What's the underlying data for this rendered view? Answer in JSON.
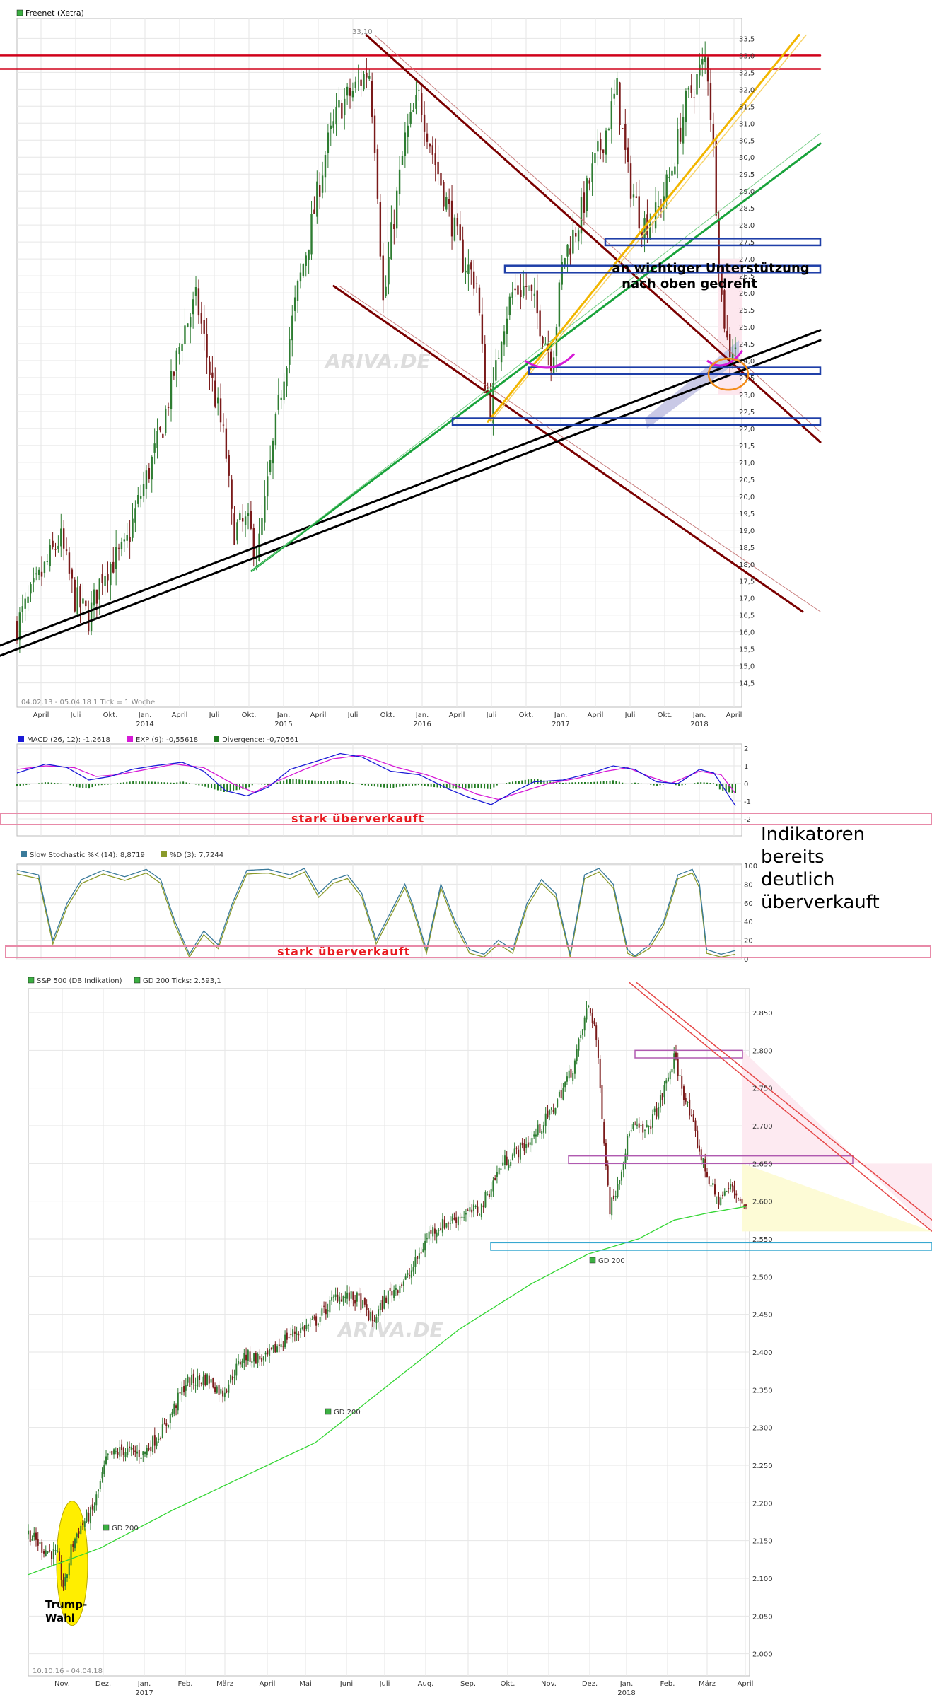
{
  "colors": {
    "up_candle": "#2e7d32",
    "down_candle": "#7a1a1a",
    "resistance": "#d0021b",
    "support_box": "#1f3fa8",
    "trend_dark": "#7a0000",
    "trend_black": "#000000",
    "trend_green": "#19a33b",
    "trend_orange": "#f2b600",
    "macd": "#1a1ad6",
    "signal": "#d61ad6",
    "divergence": "#1f7a1f",
    "stoch_k": "#3a7a9a",
    "stoch_d": "#8a9a2a",
    "gd200": "#34d634",
    "grid": "#e6e6e6"
  },
  "panel1": {
    "legend": "Freenet (Xetra)",
    "period": "04.02.13 - 05.04.18",
    "tick": "1 Tick = 1 Woche",
    "peak_label": "33,10",
    "annotation_line1": "an wichtiger Unterstützung",
    "annotation_line2": "nach oben gedreht",
    "watermark": "ARIVA.DE"
  },
  "macd_panel": {
    "legend_macd": "MACD (26, 12): -1,2618",
    "legend_exp": "EXP (9): -0,55618",
    "legend_div": "Divergence: -0,70561",
    "warning": "stark überverkauft",
    "yticks": [
      "2",
      "1",
      "0",
      "-1",
      "-2"
    ]
  },
  "stoch_panel": {
    "legend_k": "Slow Stochastic %K (14): 8,8719",
    "legend_d": "%D (3): 7,7244",
    "warning": "stark überverkauft",
    "yticks": [
      "100",
      "80",
      "60",
      "40",
      "20",
      "0"
    ]
  },
  "side_note": {
    "line1": "Indikatoren",
    "line2": "bereits",
    "line3": "deutlich",
    "line4": "überverkauft"
  },
  "panel2": {
    "legend": "S&P 500 (DB Indikation)",
    "legend_gd": "GD 200 Ticks: 2.593,1",
    "period": "10.10.16 - 04.04.18",
    "gd_label": "GD 200",
    "trump_line1": "Trump-",
    "trump_line2": "Wahl",
    "watermark": "ARIVA.DE"
  },
  "chart_data": [
    {
      "type": "candlestick",
      "title": "Freenet (Xetra)",
      "x_period": "04.02.13 - 05.04.18",
      "interval": "1 Woche",
      "y_ticks": [
        "14,5",
        "15,0",
        "15,5",
        "16,0",
        "16,5",
        "17,0",
        "17,5",
        "18,0",
        "18,5",
        "19,0",
        "19,5",
        "20,0",
        "20,5",
        "21,0",
        "21,5",
        "22,0",
        "22,5",
        "23,0",
        "23,5",
        "24,0",
        "24,5",
        "25,0",
        "25,5",
        "26,0",
        "26,5",
        "27,0",
        "27,5",
        "28,0",
        "28,5",
        "29,0",
        "29,5",
        "30,0",
        "30,5",
        "31,0",
        "31,5",
        "32,0",
        "32,5",
        "33,0",
        "33,5"
      ],
      "x_ticks": [
        {
          "label": "April",
          "sub": ""
        },
        {
          "label": "Juli",
          "sub": ""
        },
        {
          "label": "Okt.",
          "sub": ""
        },
        {
          "label": "Jan.",
          "sub": "2014"
        },
        {
          "label": "April",
          "sub": ""
        },
        {
          "label": "Juli",
          "sub": ""
        },
        {
          "label": "Okt.",
          "sub": ""
        },
        {
          "label": "Jan.",
          "sub": "2015"
        },
        {
          "label": "April",
          "sub": ""
        },
        {
          "label": "Juli",
          "sub": ""
        },
        {
          "label": "Okt.",
          "sub": ""
        },
        {
          "label": "Jan.",
          "sub": "2016"
        },
        {
          "label": "April",
          "sub": ""
        },
        {
          "label": "Juli",
          "sub": ""
        },
        {
          "label": "Okt.",
          "sub": ""
        },
        {
          "label": "Jan.",
          "sub": "2017"
        },
        {
          "label": "April",
          "sub": ""
        },
        {
          "label": "Juli",
          "sub": ""
        },
        {
          "label": "Okt.",
          "sub": ""
        },
        {
          "label": "Jan.",
          "sub": "2018"
        },
        {
          "label": "April",
          "sub": ""
        }
      ],
      "ylim": [
        14.2,
        33.8
      ],
      "close_path": [
        [
          0.0,
          16.2
        ],
        [
          0.03,
          17.5
        ],
        [
          0.06,
          18.8
        ],
        [
          0.08,
          17.0
        ],
        [
          0.1,
          16.4
        ],
        [
          0.12,
          17.8
        ],
        [
          0.15,
          18.4
        ],
        [
          0.17,
          19.9
        ],
        [
          0.2,
          21.8
        ],
        [
          0.23,
          24.8
        ],
        [
          0.25,
          25.8
        ],
        [
          0.27,
          23.5
        ],
        [
          0.29,
          21.5
        ],
        [
          0.3,
          19.0
        ],
        [
          0.32,
          19.2
        ],
        [
          0.335,
          18.3
        ],
        [
          0.35,
          20.5
        ],
        [
          0.37,
          23.5
        ],
        [
          0.39,
          26.0
        ],
        [
          0.41,
          28.0
        ],
        [
          0.43,
          30.2
        ],
        [
          0.45,
          31.5
        ],
        [
          0.47,
          32.0
        ],
        [
          0.49,
          32.6
        ],
        [
          0.5,
          30.0
        ],
        [
          0.51,
          25.5
        ],
        [
          0.52,
          27.5
        ],
        [
          0.54,
          30.5
        ],
        [
          0.56,
          31.8
        ],
        [
          0.58,
          30.0
        ],
        [
          0.6,
          28.5
        ],
        [
          0.62,
          27.0
        ],
        [
          0.64,
          26.3
        ],
        [
          0.65,
          23.5
        ],
        [
          0.66,
          22.6
        ],
        [
          0.675,
          25.0
        ],
        [
          0.69,
          26.0
        ],
        [
          0.71,
          26.2
        ],
        [
          0.73,
          25.0
        ],
        [
          0.745,
          24.0
        ],
        [
          0.76,
          27.0
        ],
        [
          0.78,
          28.0
        ],
        [
          0.8,
          29.5
        ],
        [
          0.82,
          30.8
        ],
        [
          0.835,
          32.0
        ],
        [
          0.85,
          29.5
        ],
        [
          0.87,
          28.0
        ],
        [
          0.89,
          28.3
        ],
        [
          0.91,
          29.5
        ],
        [
          0.93,
          31.5
        ],
        [
          0.95,
          32.5
        ],
        [
          0.96,
          33.0
        ],
        [
          0.97,
          30.0
        ],
        [
          0.98,
          26.0
        ],
        [
          0.99,
          24.3
        ],
        [
          1.0,
          24.5
        ]
      ]
    },
    {
      "type": "line",
      "title": "MACD (26, 12)",
      "series": [
        {
          "name": "MACD (26, 12)",
          "last": -1.2618
        },
        {
          "name": "EXP (9)",
          "last": -0.55618
        },
        {
          "name": "Divergence",
          "last": -0.70561
        }
      ],
      "ylim": [
        -2,
        2
      ]
    },
    {
      "type": "line",
      "title": "Slow Stochastic",
      "series": [
        {
          "name": "Slow Stochastic %K (14)",
          "last": 8.8719
        },
        {
          "name": "%D (3)",
          "last": 7.7244
        }
      ],
      "ylim": [
        0,
        100
      ]
    },
    {
      "type": "candlestick",
      "title": "S&P 500 (DB Indikation)",
      "x_period": "10.10.16 - 04.04.18",
      "y_ticks": [
        "2.000",
        "2.050",
        "2.100",
        "2.150",
        "2.200",
        "2.250",
        "2.300",
        "2.350",
        "2.400",
        "2.450",
        "2.500",
        "2.550",
        "2.600",
        "2.650",
        "2.700",
        "2.750",
        "2.800",
        "2.850"
      ],
      "x_ticks": [
        {
          "label": "Nov.",
          "sub": ""
        },
        {
          "label": "Dez.",
          "sub": ""
        },
        {
          "label": "Jan.",
          "sub": "2017"
        },
        {
          "label": "Feb.",
          "sub": ""
        },
        {
          "label": "März",
          "sub": ""
        },
        {
          "label": "April",
          "sub": ""
        },
        {
          "label": "Mai",
          "sub": ""
        },
        {
          "label": "Juni",
          "sub": ""
        },
        {
          "label": "Juli",
          "sub": ""
        },
        {
          "label": "Aug.",
          "sub": ""
        },
        {
          "label": "Sep.",
          "sub": ""
        },
        {
          "label": "Okt.",
          "sub": ""
        },
        {
          "label": "Nov.",
          "sub": ""
        },
        {
          "label": "Dez.",
          "sub": ""
        },
        {
          "label": "Jan.",
          "sub": "2018"
        },
        {
          "label": "Feb.",
          "sub": ""
        },
        {
          "label": "März",
          "sub": ""
        },
        {
          "label": "April",
          "sub": ""
        }
      ],
      "ylim": [
        1980,
        2880
      ],
      "gd200_last": 2593.1,
      "close_path": [
        [
          0.0,
          2160
        ],
        [
          0.02,
          2140
        ],
        [
          0.04,
          2130
        ],
        [
          0.05,
          2085
        ],
        [
          0.06,
          2140
        ],
        [
          0.07,
          2165
        ],
        [
          0.09,
          2190
        ],
        [
          0.11,
          2260
        ],
        [
          0.13,
          2270
        ],
        [
          0.16,
          2265
        ],
        [
          0.19,
          2300
        ],
        [
          0.22,
          2360
        ],
        [
          0.25,
          2365
        ],
        [
          0.27,
          2345
        ],
        [
          0.3,
          2395
        ],
        [
          0.33,
          2390
        ],
        [
          0.36,
          2420
        ],
        [
          0.4,
          2440
        ],
        [
          0.43,
          2475
        ],
        [
          0.46,
          2470
        ],
        [
          0.48,
          2440
        ],
        [
          0.5,
          2475
        ],
        [
          0.53,
          2500
        ],
        [
          0.56,
          2560
        ],
        [
          0.6,
          2580
        ],
        [
          0.63,
          2590
        ],
        [
          0.66,
          2650
        ],
        [
          0.7,
          2680
        ],
        [
          0.73,
          2720
        ],
        [
          0.76,
          2780
        ],
        [
          0.78,
          2860
        ],
        [
          0.79,
          2830
        ],
        [
          0.81,
          2590
        ],
        [
          0.82,
          2620
        ],
        [
          0.84,
          2700
        ],
        [
          0.86,
          2690
        ],
        [
          0.88,
          2730
        ],
        [
          0.9,
          2790
        ],
        [
          0.92,
          2720
        ],
        [
          0.94,
          2650
        ],
        [
          0.96,
          2600
        ],
        [
          0.98,
          2620
        ],
        [
          1.0,
          2590
        ]
      ],
      "gd200_path": [
        [
          0.0,
          2105
        ],
        [
          0.1,
          2140
        ],
        [
          0.2,
          2190
        ],
        [
          0.3,
          2235
        ],
        [
          0.4,
          2280
        ],
        [
          0.5,
          2355
        ],
        [
          0.6,
          2430
        ],
        [
          0.7,
          2490
        ],
        [
          0.78,
          2530
        ],
        [
          0.85,
          2550
        ],
        [
          0.9,
          2575
        ],
        [
          0.95,
          2585
        ],
        [
          1.0,
          2593
        ]
      ]
    }
  ]
}
